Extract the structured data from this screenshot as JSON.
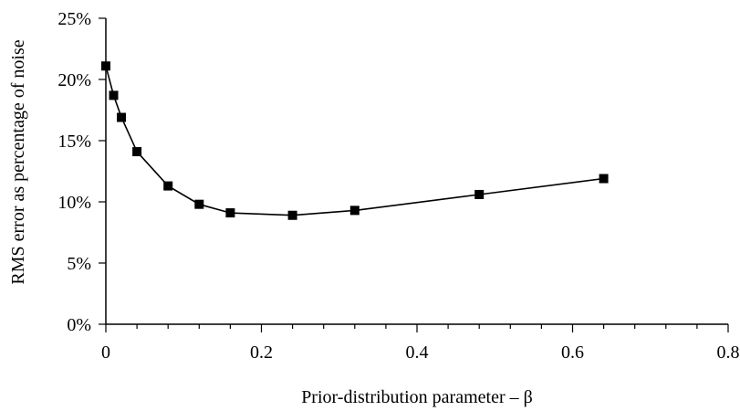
{
  "chart_data": {
    "type": "line",
    "title": "",
    "xlabel": "Prior-distribution parameter – β",
    "ylabel": "RMS error as percentage of noise",
    "xlim": [
      0,
      0.8
    ],
    "ylim": [
      0,
      25
    ],
    "x_ticks": [
      0,
      0.2,
      0.4,
      0.6,
      0.8
    ],
    "x_tick_labels": [
      "0",
      "0.2",
      "0.4",
      "0.6",
      "0.8"
    ],
    "x_minor_step": 0.04,
    "y_ticks": [
      0,
      5,
      10,
      15,
      20,
      25
    ],
    "y_tick_labels": [
      "0%",
      "5%",
      "10%",
      "15%",
      "20%",
      "25%"
    ],
    "grid": false,
    "legend": "none",
    "marker": "square",
    "line_color": "#000000",
    "series": [
      {
        "x": [
          0,
          0.01,
          0.02,
          0.04,
          0.08,
          0.12,
          0.16,
          0.24,
          0.32,
          0.48,
          0.64
        ],
        "y": [
          21.1,
          18.7,
          16.9,
          14.1,
          11.3,
          9.8,
          9.1,
          8.9,
          9.3,
          10.6,
          11.9
        ]
      }
    ]
  }
}
